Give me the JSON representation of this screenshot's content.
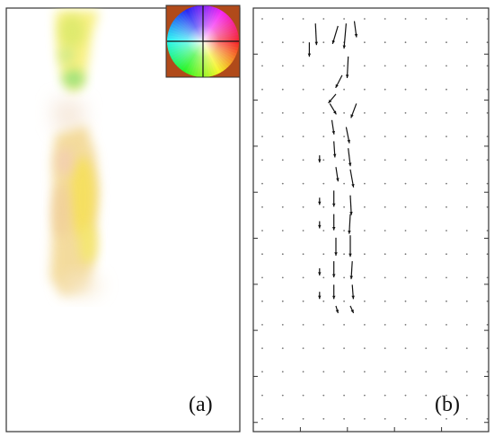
{
  "panels": {
    "a": {
      "label": "(a)"
    },
    "b": {
      "label": "(b)"
    }
  },
  "colors": {
    "frame": "#333333",
    "flow_yellow": "#f5e94a",
    "flow_green": "#8fe07a",
    "flow_orange": "#f2c890",
    "arrow": "#111111",
    "dot": "#777777"
  },
  "icons": {
    "color_wheel": "optical-flow-color-wheel-icon"
  },
  "vector_field": {
    "grid_columns": 12,
    "grid_rows": 18,
    "arrows": [
      {
        "col": 2.6,
        "row": 0.2,
        "dx": 0.1,
        "dy": 1.2
      },
      {
        "col": 2.3,
        "row": 1.0,
        "dx": 0.0,
        "dy": 0.8
      },
      {
        "col": 3.7,
        "row": 0.3,
        "dx": -0.5,
        "dy": 1.0
      },
      {
        "col": 4.1,
        "row": 0.2,
        "dx": -0.2,
        "dy": 1.4
      },
      {
        "col": 4.5,
        "row": 0.1,
        "dx": 0.2,
        "dy": 0.9
      },
      {
        "col": 4.2,
        "row": 1.6,
        "dx": -0.1,
        "dy": 1.2
      },
      {
        "col": 3.9,
        "row": 2.4,
        "dx": -0.6,
        "dy": 0.7
      },
      {
        "col": 3.6,
        "row": 3.2,
        "dx": -0.7,
        "dy": 0.5
      },
      {
        "col": 3.3,
        "row": 3.6,
        "dx": 0.6,
        "dy": 0.6
      },
      {
        "col": 4.6,
        "row": 3.6,
        "dx": -0.5,
        "dy": 0.8
      },
      {
        "col": 3.4,
        "row": 4.3,
        "dx": 0.2,
        "dy": 0.8
      },
      {
        "col": 4.1,
        "row": 4.6,
        "dx": 0.3,
        "dy": 0.9
      },
      {
        "col": 3.5,
        "row": 5.2,
        "dx": 0.1,
        "dy": 0.9
      },
      {
        "col": 4.2,
        "row": 5.5,
        "dx": 0.2,
        "dy": 1.0
      },
      {
        "col": 2.8,
        "row": 5.8,
        "dx": 0.0,
        "dy": 0.4
      },
      {
        "col": 3.6,
        "row": 6.3,
        "dx": 0.2,
        "dy": 0.8
      },
      {
        "col": 4.3,
        "row": 6.4,
        "dx": 0.3,
        "dy": 1.0
      },
      {
        "col": 3.5,
        "row": 7.3,
        "dx": 0.0,
        "dy": 0.9
      },
      {
        "col": 4.3,
        "row": 7.5,
        "dx": 0.1,
        "dy": 1.1
      },
      {
        "col": 2.8,
        "row": 7.6,
        "dx": 0.0,
        "dy": 0.4
      },
      {
        "col": 3.5,
        "row": 8.3,
        "dx": 0.0,
        "dy": 0.9
      },
      {
        "col": 4.3,
        "row": 8.3,
        "dx": -0.1,
        "dy": 1.1
      },
      {
        "col": 2.8,
        "row": 8.6,
        "dx": 0.0,
        "dy": 0.4
      },
      {
        "col": 3.6,
        "row": 9.3,
        "dx": 0.0,
        "dy": 1.0
      },
      {
        "col": 4.3,
        "row": 9.2,
        "dx": 0.0,
        "dy": 1.2
      },
      {
        "col": 3.5,
        "row": 10.3,
        "dx": 0.0,
        "dy": 0.9
      },
      {
        "col": 4.4,
        "row": 10.3,
        "dx": -0.1,
        "dy": 1.0
      },
      {
        "col": 2.8,
        "row": 10.6,
        "dx": 0.0,
        "dy": 0.4
      },
      {
        "col": 3.5,
        "row": 11.3,
        "dx": 0.0,
        "dy": 0.8
      },
      {
        "col": 4.4,
        "row": 11.3,
        "dx": 0.1,
        "dy": 0.8
      },
      {
        "col": 2.8,
        "row": 11.6,
        "dx": 0.0,
        "dy": 0.4
      },
      {
        "col": 3.6,
        "row": 12.2,
        "dx": 0.2,
        "dy": 0.4
      },
      {
        "col": 4.3,
        "row": 12.2,
        "dx": 0.3,
        "dy": 0.4
      }
    ]
  }
}
